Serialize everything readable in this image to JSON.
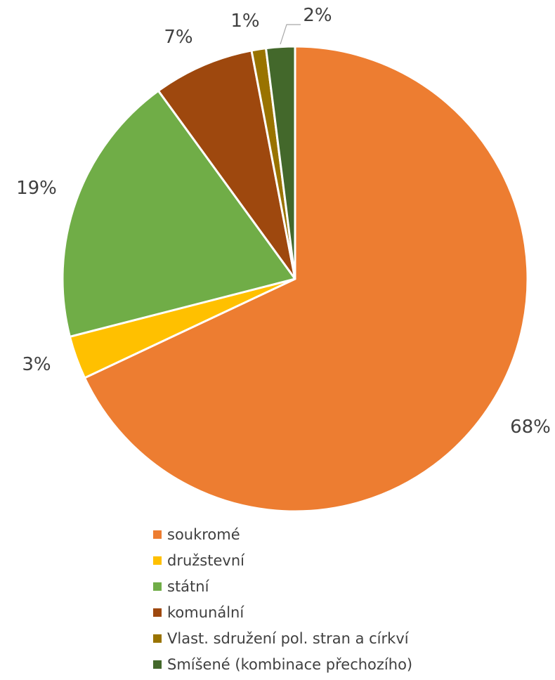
{
  "chart_data": {
    "type": "pie",
    "title": "",
    "start_angle_deg": 0,
    "direction": "clockwise",
    "legend_position": "bottom",
    "slice_border_color": "#ffffff",
    "label_color": "#404040",
    "slices": [
      {
        "name": "soukromé",
        "value": 68,
        "label": "68%",
        "color": "#ED7D31"
      },
      {
        "name": "družstevní",
        "value": 3,
        "label": "3%",
        "color": "#FFC000"
      },
      {
        "name": "státní",
        "value": 19,
        "label": "19%",
        "color": "#70AD47"
      },
      {
        "name": "komunální",
        "value": 7,
        "label": "7%",
        "color": "#9E480E"
      },
      {
        "name": "Vlast. sdružení pol. stran a církví",
        "value": 1,
        "label": "1%",
        "color": "#997300"
      },
      {
        "name": "Smíšené (kombinace přechozího)",
        "value": 2,
        "label": "2%",
        "color": "#43682B"
      }
    ]
  }
}
